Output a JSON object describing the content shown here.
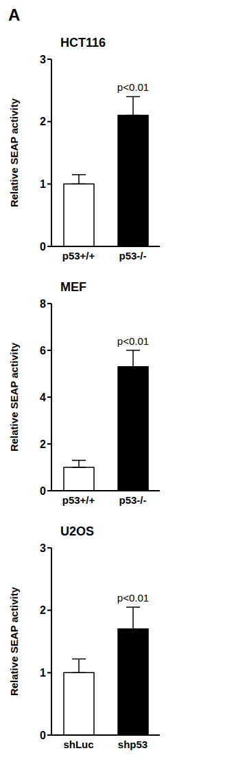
{
  "panel_label": "A",
  "chart_data": [
    {
      "type": "bar",
      "title": "HCT116",
      "y_label": "Relative SEAP activity",
      "categories": [
        "p53+/+",
        "p53-/-"
      ],
      "values": [
        1.0,
        2.1
      ],
      "errors": [
        0.15,
        0.3
      ],
      "colors": [
        "#ffffff",
        "#000000"
      ],
      "ylim": [
        0,
        3
      ],
      "yticks": [
        0,
        1,
        2,
        3
      ],
      "grid": false,
      "annotations": [
        {
          "text": "p<0.01",
          "category": "p53-/-"
        }
      ]
    },
    {
      "type": "bar",
      "title": "MEF",
      "y_label": "Relative SEAP activity",
      "categories": [
        "p53+/+",
        "p53-/-"
      ],
      "values": [
        1.0,
        5.3
      ],
      "errors": [
        0.3,
        0.7
      ],
      "colors": [
        "#ffffff",
        "#000000"
      ],
      "ylim": [
        0,
        8
      ],
      "yticks": [
        0,
        2,
        4,
        6,
        8
      ],
      "grid": false,
      "annotations": [
        {
          "text": "p<0.01",
          "category": "p53-/-"
        }
      ]
    },
    {
      "type": "bar",
      "title": "U2OS",
      "y_label": "Relative SEAP activity",
      "categories": [
        "shLuc",
        "shp53"
      ],
      "values": [
        1.0,
        1.7
      ],
      "errors": [
        0.22,
        0.35
      ],
      "colors": [
        "#ffffff",
        "#000000"
      ],
      "ylim": [
        0,
        3
      ],
      "yticks": [
        0,
        1,
        2,
        3
      ],
      "grid": false,
      "annotations": [
        {
          "text": "p<0.01",
          "category": "shp53"
        }
      ]
    }
  ]
}
